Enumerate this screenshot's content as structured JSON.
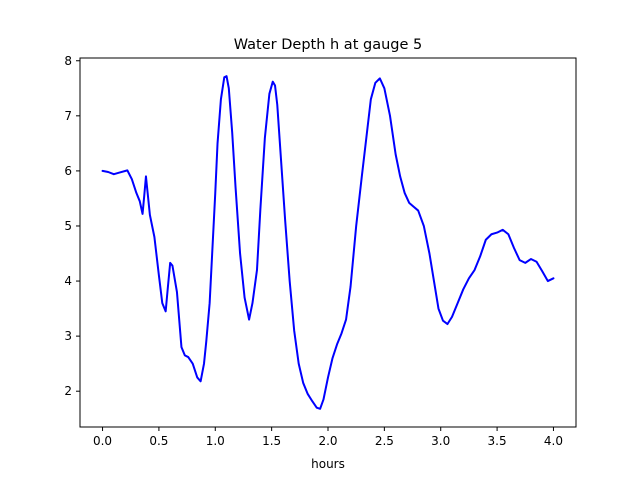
{
  "chart_data": {
    "type": "line",
    "title": "Water Depth h at gauge 5",
    "xlabel": "hours",
    "ylabel": "",
    "xlim": [
      -0.2,
      4.2
    ],
    "ylim": [
      1.35,
      8.05
    ],
    "x_ticks": [
      0.0,
      0.5,
      1.0,
      1.5,
      2.0,
      2.5,
      3.0,
      3.5,
      4.0
    ],
    "x_tick_labels": [
      "0.0",
      "0.5",
      "1.0",
      "1.5",
      "2.0",
      "2.5",
      "3.0",
      "3.5",
      "4.0"
    ],
    "y_ticks": [
      2,
      3,
      4,
      5,
      6,
      7,
      8
    ],
    "y_tick_labels": [
      "2",
      "3",
      "4",
      "5",
      "6",
      "7",
      "8"
    ],
    "grid": false,
    "line_color": "#0000ff",
    "series": [
      {
        "x": [
          0.0,
          0.05,
          0.1,
          0.15,
          0.22,
          0.26,
          0.3,
          0.33,
          0.355,
          0.37,
          0.385,
          0.395,
          0.42,
          0.46,
          0.5,
          0.53,
          0.56,
          0.58,
          0.6,
          0.62,
          0.66,
          0.7,
          0.73,
          0.76,
          0.8,
          0.84,
          0.87,
          0.9,
          0.92,
          0.95,
          0.98,
          1.0,
          1.02,
          1.05,
          1.08,
          1.1,
          1.12,
          1.15,
          1.18,
          1.22,
          1.26,
          1.3,
          1.33,
          1.37,
          1.4,
          1.44,
          1.48,
          1.51,
          1.53,
          1.55,
          1.58,
          1.62,
          1.66,
          1.7,
          1.74,
          1.78,
          1.82,
          1.86,
          1.9,
          1.93,
          1.96,
          2.0,
          2.04,
          2.08,
          2.12,
          2.16,
          2.2,
          2.25,
          2.3,
          2.34,
          2.38,
          2.42,
          2.46,
          2.5,
          2.55,
          2.6,
          2.64,
          2.68,
          2.72,
          2.76,
          2.8,
          2.85,
          2.9,
          2.94,
          2.98,
          3.02,
          3.06,
          3.1,
          3.15,
          3.2,
          3.25,
          3.3,
          3.35,
          3.4,
          3.45,
          3.5,
          3.55,
          3.6,
          3.65,
          3.7,
          3.75,
          3.8,
          3.85,
          3.9,
          3.95,
          4.0
        ],
        "y": [
          6.0,
          5.98,
          5.94,
          5.97,
          6.01,
          5.85,
          5.6,
          5.45,
          5.22,
          5.55,
          5.9,
          5.7,
          5.2,
          4.8,
          4.1,
          3.6,
          3.45,
          3.9,
          4.33,
          4.28,
          3.8,
          2.8,
          2.65,
          2.62,
          2.5,
          2.25,
          2.18,
          2.5,
          2.9,
          3.6,
          4.8,
          5.6,
          6.5,
          7.3,
          7.7,
          7.72,
          7.5,
          6.7,
          5.7,
          4.5,
          3.7,
          3.3,
          3.6,
          4.2,
          5.3,
          6.6,
          7.4,
          7.62,
          7.55,
          7.2,
          6.3,
          5.1,
          4.0,
          3.1,
          2.5,
          2.15,
          1.95,
          1.82,
          1.7,
          1.68,
          1.85,
          2.25,
          2.6,
          2.85,
          3.05,
          3.3,
          3.9,
          5.0,
          5.9,
          6.6,
          7.3,
          7.6,
          7.68,
          7.5,
          7.0,
          6.3,
          5.9,
          5.6,
          5.42,
          5.35,
          5.28,
          5.0,
          4.5,
          4.0,
          3.5,
          3.28,
          3.22,
          3.35,
          3.6,
          3.85,
          4.05,
          4.2,
          4.45,
          4.75,
          4.85,
          4.88,
          4.93,
          4.85,
          4.6,
          4.38,
          4.33,
          4.4,
          4.35,
          4.18,
          4.0,
          4.05
        ]
      }
    ]
  }
}
